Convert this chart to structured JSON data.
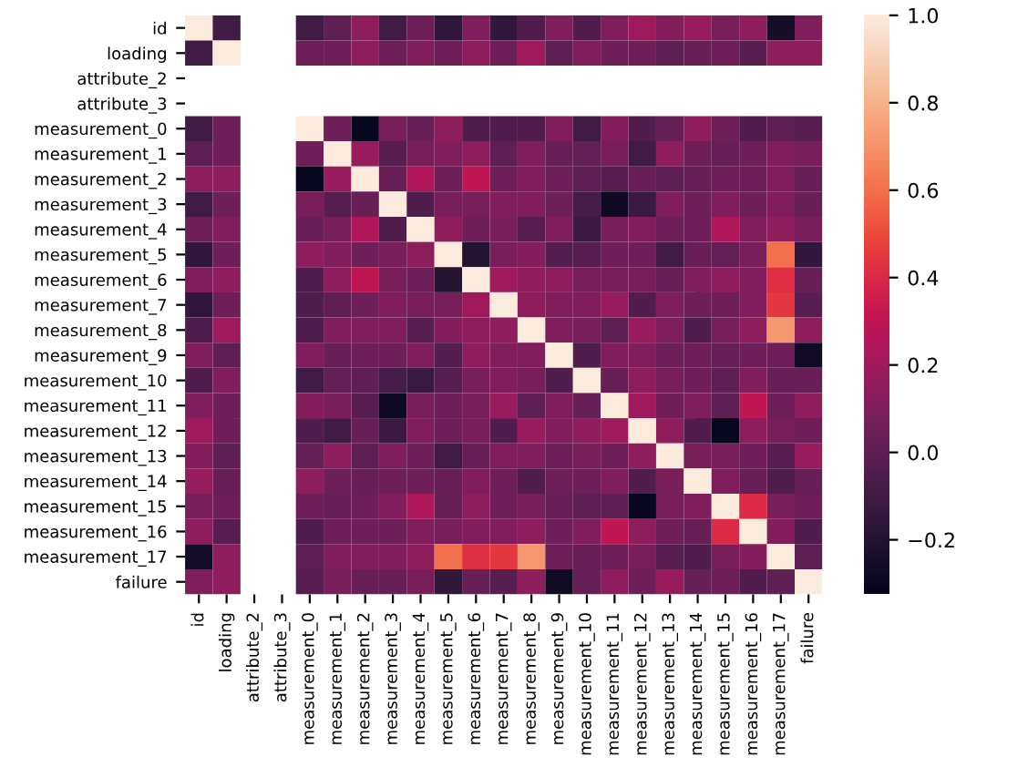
{
  "chart_data": {
    "type": "heatmap",
    "categories": [
      "id",
      "loading",
      "attribute_2",
      "attribute_3",
      "measurement_0",
      "measurement_1",
      "measurement_2",
      "measurement_3",
      "measurement_4",
      "measurement_5",
      "measurement_6",
      "measurement_7",
      "measurement_8",
      "measurement_9",
      "measurement_10",
      "measurement_11",
      "measurement_12",
      "measurement_13",
      "measurement_14",
      "measurement_15",
      "measurement_16",
      "measurement_17",
      "failure"
    ],
    "y_categories": [
      "id",
      "loading",
      "attribute_2",
      "attribute_3",
      "measurement_0",
      "measurement_1",
      "measurement_2",
      "measurement_3",
      "measurement_4",
      "measurement_5",
      "measurement_6",
      "measurement_7",
      "measurement_8",
      "measurement_9",
      "measurement_10",
      "measurement_11",
      "measurement_12",
      "measurement_13",
      "measurement_14",
      "measurement_15",
      "measurement_16",
      "measurement_17",
      "failure"
    ],
    "cells": [
      [
        1,
        -0.1,
        null,
        null,
        -0.1,
        0.0,
        0.15,
        -0.1,
        0.05,
        -0.15,
        0.1,
        -0.15,
        -0.05,
        0.1,
        -0.05,
        0.1,
        0.2,
        0.12,
        0.18,
        0.08,
        0.15,
        -0.25,
        0.1
      ],
      [
        -0.1,
        1,
        null,
        null,
        0.05,
        0.05,
        0.15,
        0.05,
        0.1,
        0.05,
        0.15,
        0.05,
        0.2,
        0.0,
        0.1,
        0.05,
        0.05,
        0.0,
        0.03,
        0.05,
        -0.02,
        0.15,
        0.15
      ],
      [
        null,
        null,
        null,
        null,
        null,
        null,
        null,
        null,
        null,
        null,
        null,
        null,
        null,
        null,
        null,
        null,
        null,
        null,
        null,
        null,
        null,
        null,
        null
      ],
      [
        null,
        null,
        null,
        null,
        null,
        null,
        null,
        null,
        null,
        null,
        null,
        null,
        null,
        null,
        null,
        null,
        null,
        null,
        null,
        null,
        null,
        null,
        null
      ],
      [
        -0.1,
        0.05,
        null,
        null,
        1,
        0.05,
        -0.3,
        0.08,
        0.03,
        0.15,
        -0.05,
        -0.05,
        -0.05,
        0.1,
        -0.1,
        0.12,
        -0.05,
        0.02,
        0.15,
        0.05,
        -0.05,
        0.0,
        -0.02
      ],
      [
        0.0,
        0.05,
        null,
        null,
        0.05,
        1,
        0.18,
        -0.02,
        0.08,
        0.1,
        0.15,
        0.0,
        0.1,
        0.03,
        0.02,
        0.08,
        -0.1,
        0.15,
        0.05,
        0.03,
        0.05,
        0.1,
        0.08
      ],
      [
        0.15,
        0.15,
        null,
        null,
        -0.3,
        0.18,
        1,
        0.03,
        0.25,
        0.05,
        0.3,
        0.05,
        0.1,
        0.05,
        0.0,
        -0.02,
        0.03,
        0.0,
        0.03,
        0.05,
        0.05,
        0.1,
        0.03
      ],
      [
        -0.1,
        0.05,
        null,
        null,
        0.08,
        -0.02,
        0.03,
        1,
        -0.05,
        0.08,
        0.08,
        0.1,
        0.1,
        0.05,
        -0.08,
        -0.28,
        -0.12,
        0.1,
        0.05,
        0.1,
        0.05,
        0.1,
        0.03
      ],
      [
        0.05,
        0.1,
        null,
        null,
        0.03,
        0.08,
        0.25,
        -0.05,
        1,
        0.15,
        0.05,
        0.08,
        -0.02,
        0.1,
        -0.12,
        0.08,
        0.1,
        0.05,
        0.05,
        0.25,
        0.1,
        0.15,
        0.08
      ],
      [
        -0.15,
        0.05,
        null,
        null,
        0.15,
        0.1,
        0.05,
        0.08,
        0.15,
        1,
        -0.2,
        0.08,
        0.12,
        -0.03,
        -0.02,
        0.05,
        0.05,
        -0.1,
        0.03,
        0.02,
        0.08,
        0.6,
        -0.15
      ],
      [
        0.1,
        0.15,
        null,
        null,
        -0.05,
        0.15,
        0.3,
        0.08,
        0.05,
        -0.2,
        1,
        0.2,
        0.15,
        0.15,
        0.08,
        0.08,
        0.08,
        0.03,
        0.1,
        0.15,
        0.1,
        0.42,
        0.03
      ],
      [
        -0.15,
        0.05,
        null,
        null,
        -0.05,
        0.0,
        0.05,
        0.1,
        0.08,
        0.08,
        0.2,
        1,
        0.15,
        0.1,
        0.1,
        0.18,
        -0.05,
        0.1,
        0.05,
        0.05,
        0.1,
        0.45,
        -0.02
      ],
      [
        -0.05,
        0.2,
        null,
        null,
        -0.05,
        0.1,
        0.1,
        0.1,
        -0.02,
        0.12,
        0.15,
        0.15,
        1,
        0.1,
        0.08,
        0.0,
        0.18,
        0.1,
        -0.05,
        0.08,
        0.15,
        0.72,
        0.15
      ],
      [
        0.1,
        0.0,
        null,
        null,
        0.1,
        0.03,
        0.05,
        0.05,
        0.1,
        -0.03,
        0.15,
        0.1,
        0.1,
        1,
        -0.05,
        0.1,
        0.1,
        0.05,
        0.05,
        0.03,
        0.05,
        0.05,
        -0.27
      ],
      [
        -0.05,
        0.1,
        null,
        null,
        -0.1,
        0.02,
        0.0,
        -0.08,
        -0.12,
        -0.02,
        0.08,
        0.1,
        0.08,
        -0.05,
        1,
        0.03,
        0.15,
        0.08,
        0.05,
        0.0,
        0.1,
        0.03,
        0.03
      ],
      [
        0.1,
        0.05,
        null,
        null,
        0.12,
        0.08,
        -0.02,
        -0.28,
        0.08,
        0.05,
        0.08,
        0.18,
        0.0,
        0.1,
        0.03,
        1,
        0.2,
        0.05,
        0.1,
        0.0,
        0.3,
        0.05,
        0.15
      ],
      [
        0.2,
        0.05,
        null,
        null,
        -0.05,
        -0.1,
        0.03,
        -0.12,
        0.1,
        0.05,
        0.08,
        -0.05,
        0.18,
        0.1,
        0.15,
        0.2,
        1,
        0.15,
        -0.05,
        -0.3,
        0.15,
        0.08,
        0.05
      ],
      [
        0.12,
        0.0,
        null,
        null,
        0.02,
        0.15,
        0.0,
        0.1,
        0.05,
        -0.1,
        0.03,
        0.1,
        0.1,
        0.05,
        0.08,
        0.05,
        0.15,
        1,
        0.08,
        0.08,
        0.05,
        -0.02,
        0.18
      ],
      [
        0.18,
        0.03,
        null,
        null,
        0.15,
        0.05,
        0.03,
        0.05,
        0.05,
        0.03,
        0.1,
        0.05,
        -0.05,
        0.05,
        0.05,
        0.1,
        -0.05,
        0.08,
        1,
        0.1,
        0.03,
        -0.05,
        0.03
      ],
      [
        0.08,
        0.05,
        null,
        null,
        0.05,
        0.03,
        0.05,
        0.1,
        0.25,
        0.02,
        0.15,
        0.05,
        0.08,
        0.03,
        0.0,
        0.0,
        -0.3,
        0.08,
        0.1,
        1,
        0.4,
        0.08,
        0.05
      ],
      [
        0.15,
        -0.02,
        null,
        null,
        -0.05,
        0.05,
        0.05,
        0.05,
        0.1,
        0.08,
        0.1,
        0.1,
        0.15,
        0.05,
        0.1,
        0.3,
        0.15,
        0.05,
        0.03,
        0.4,
        1,
        0.12,
        -0.05
      ],
      [
        -0.25,
        0.15,
        null,
        null,
        0.0,
        0.1,
        0.1,
        0.1,
        0.15,
        0.6,
        0.42,
        0.45,
        0.72,
        0.05,
        0.03,
        0.05,
        0.08,
        -0.02,
        -0.05,
        0.08,
        0.12,
        1,
        0.0
      ],
      [
        0.1,
        0.15,
        null,
        null,
        -0.02,
        0.08,
        0.03,
        0.03,
        0.08,
        -0.15,
        0.03,
        -0.02,
        0.15,
        -0.27,
        0.03,
        0.15,
        0.05,
        0.18,
        0.03,
        0.05,
        -0.05,
        0.0,
        1
      ]
    ],
    "clim": [
      -0.325,
      1.0
    ],
    "cticks": [
      {
        "value": -0.2,
        "label": "−0.2"
      },
      {
        "value": 0.0,
        "label": "0.0"
      },
      {
        "value": 0.2,
        "label": "0.2"
      },
      {
        "value": 0.4,
        "label": "0.4"
      },
      {
        "value": 0.6,
        "label": "0.6"
      },
      {
        "value": 0.8,
        "label": "0.8"
      },
      {
        "value": 1.0,
        "label": "1.0"
      }
    ]
  }
}
